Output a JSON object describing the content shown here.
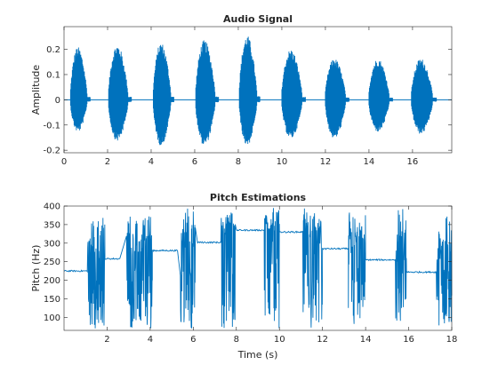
{
  "chart_data": [
    {
      "type": "line",
      "title": "Audio Signal",
      "xlabel": "",
      "ylabel": "Amplitude",
      "xlim": [
        0,
        17.8
      ],
      "ylim": [
        -0.21,
        0.29
      ],
      "xticks": [
        0,
        2,
        4,
        6,
        8,
        10,
        12,
        14,
        16
      ],
      "yticks": [
        -0.2,
        -0.1,
        0,
        0.1,
        0.2
      ],
      "ytick_labels": [
        "-0.2",
        "-0.1",
        "0",
        "0.1",
        "0.2"
      ],
      "grid": false,
      "color": "#0072BD",
      "bursts": [
        {
          "start": 0.3,
          "end": 1.2,
          "peak_pos": 0.23,
          "peak_neg": -0.14
        },
        {
          "start": 2.05,
          "end": 3.1,
          "peak_pos": 0.24,
          "peak_neg": -0.18
        },
        {
          "start": 4.1,
          "end": 5.05,
          "peak_pos": 0.25,
          "peak_neg": -0.2
        },
        {
          "start": 6.05,
          "end": 7.1,
          "peak_pos": 0.26,
          "peak_neg": -0.2
        },
        {
          "start": 8.05,
          "end": 9.0,
          "peak_pos": 0.28,
          "peak_neg": -0.2
        },
        {
          "start": 10.0,
          "end": 11.1,
          "peak_pos": 0.22,
          "peak_neg": -0.17
        },
        {
          "start": 12.0,
          "end": 13.1,
          "peak_pos": 0.18,
          "peak_neg": -0.17
        },
        {
          "start": 14.0,
          "end": 15.1,
          "peak_pos": 0.18,
          "peak_neg": -0.14
        },
        {
          "start": 15.95,
          "end": 17.1,
          "peak_pos": 0.18,
          "peak_neg": -0.15
        }
      ]
    },
    {
      "type": "line",
      "title": "Pitch Estimations",
      "xlabel": "Time (s)",
      "ylabel": "Pitch (Hz)",
      "xlim": [
        0,
        18
      ],
      "ylim": [
        65,
        400
      ],
      "xticks": [
        2,
        4,
        6,
        8,
        10,
        12,
        14,
        16,
        18
      ],
      "yticks": [
        100,
        150,
        200,
        250,
        300,
        350,
        400
      ],
      "grid": false,
      "color": "#0072BD",
      "steady_segments": [
        {
          "start": 0.0,
          "end": 1.1,
          "value": 225
        },
        {
          "start": 1.9,
          "end": 2.6,
          "value": 258
        },
        {
          "start": 4.1,
          "end": 5.3,
          "value": 280
        },
        {
          "start": 6.2,
          "end": 7.3,
          "value": 302
        },
        {
          "start": 8.0,
          "end": 9.3,
          "value": 335
        },
        {
          "start": 10.0,
          "end": 11.1,
          "value": 330
        },
        {
          "start": 12.0,
          "end": 13.2,
          "value": 285
        },
        {
          "start": 14.0,
          "end": 15.4,
          "value": 255
        },
        {
          "start": 15.9,
          "end": 17.3,
          "value": 222
        }
      ],
      "noisy_segments": [
        {
          "start": 1.1,
          "end": 1.9
        },
        {
          "start": 2.9,
          "end": 4.1
        },
        {
          "start": 5.4,
          "end": 6.1
        },
        {
          "start": 7.3,
          "end": 7.95
        },
        {
          "start": 9.3,
          "end": 10.0
        },
        {
          "start": 11.1,
          "end": 12.0
        },
        {
          "start": 13.2,
          "end": 14.0
        },
        {
          "start": 15.4,
          "end": 15.9
        },
        {
          "start": 17.3,
          "end": 18.0
        }
      ]
    }
  ]
}
